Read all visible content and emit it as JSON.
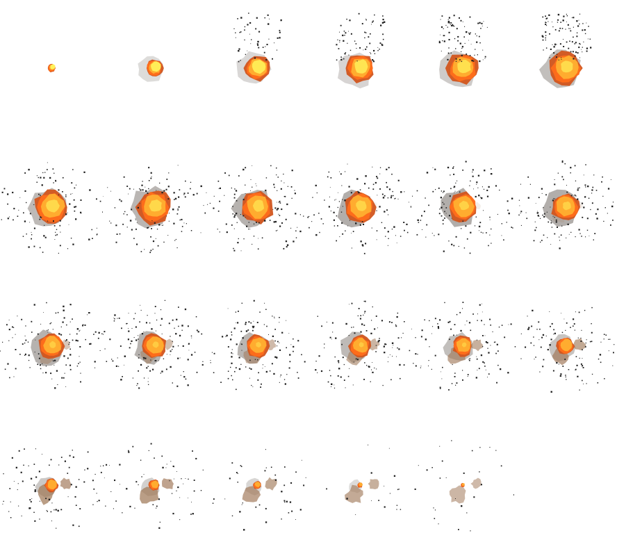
{
  "sheet": {
    "name": "explosion-sprite-sheet",
    "columns": 6,
    "rows": 4,
    "frame_count": 23,
    "colors": {
      "background": "#ffffff",
      "core": "#fff25a",
      "fire": "#ffb030",
      "hot": "#ff6e1a",
      "ember": "#d2551e",
      "smoke": "#6e6660",
      "dust": "#a07858",
      "debris": "#222222"
    }
  },
  "frames": [
    {
      "fire": 0.12,
      "core": 1.0,
      "smoke": 0.0,
      "debris": 0.0,
      "dust": 0.0
    },
    {
      "fire": 0.26,
      "core": 0.9,
      "smoke": 0.05,
      "debris": 0.0,
      "dust": 0.0
    },
    {
      "fire": 0.38,
      "core": 0.8,
      "smoke": 0.1,
      "debris": 0.35,
      "dust": 0.0
    },
    {
      "fire": 0.42,
      "core": 0.7,
      "smoke": 0.15,
      "debris": 0.5,
      "dust": 0.0
    },
    {
      "fire": 0.46,
      "core": 0.55,
      "smoke": 0.25,
      "debris": 0.6,
      "dust": 0.0
    },
    {
      "fire": 0.48,
      "core": 0.45,
      "smoke": 0.4,
      "debris": 0.7,
      "dust": 0.0
    },
    {
      "fire": 0.5,
      "core": 0.4,
      "smoke": 0.45,
      "debris": 0.8,
      "dust": 0.0
    },
    {
      "fire": 0.5,
      "core": 0.38,
      "smoke": 0.5,
      "debris": 0.85,
      "dust": 0.0
    },
    {
      "fire": 0.48,
      "core": 0.35,
      "smoke": 0.55,
      "debris": 0.9,
      "dust": 0.05
    },
    {
      "fire": 0.46,
      "core": 0.3,
      "smoke": 0.6,
      "debris": 0.9,
      "dust": 0.1
    },
    {
      "fire": 0.44,
      "core": 0.25,
      "smoke": 0.6,
      "debris": 0.9,
      "dust": 0.15
    },
    {
      "fire": 0.42,
      "core": 0.2,
      "smoke": 0.6,
      "debris": 0.9,
      "dust": 0.2
    },
    {
      "fire": 0.38,
      "core": 0.1,
      "smoke": 0.55,
      "debris": 0.95,
      "dust": 0.5
    },
    {
      "fire": 0.36,
      "core": 0.08,
      "smoke": 0.55,
      "debris": 0.95,
      "dust": 0.55
    },
    {
      "fire": 0.34,
      "core": 0.06,
      "smoke": 0.5,
      "debris": 0.9,
      "dust": 0.6
    },
    {
      "fire": 0.32,
      "core": 0.05,
      "smoke": 0.45,
      "debris": 0.85,
      "dust": 0.65
    },
    {
      "fire": 0.3,
      "core": 0.04,
      "smoke": 0.4,
      "debris": 0.8,
      "dust": 0.7
    },
    {
      "fire": 0.26,
      "core": 0.02,
      "smoke": 0.35,
      "debris": 0.75,
      "dust": 0.75
    },
    {
      "fire": 0.2,
      "core": 0.0,
      "smoke": 0.3,
      "debris": 0.6,
      "dust": 0.8
    },
    {
      "fire": 0.16,
      "core": 0.0,
      "smoke": 0.2,
      "debris": 0.45,
      "dust": 0.8
    },
    {
      "fire": 0.12,
      "core": 0.0,
      "smoke": 0.12,
      "debris": 0.3,
      "dust": 0.75
    },
    {
      "fire": 0.08,
      "core": 0.0,
      "smoke": 0.05,
      "debris": 0.12,
      "dust": 0.7
    },
    {
      "fire": 0.06,
      "core": 0.0,
      "smoke": 0.0,
      "debris": 0.2,
      "dust": 0.6
    }
  ]
}
